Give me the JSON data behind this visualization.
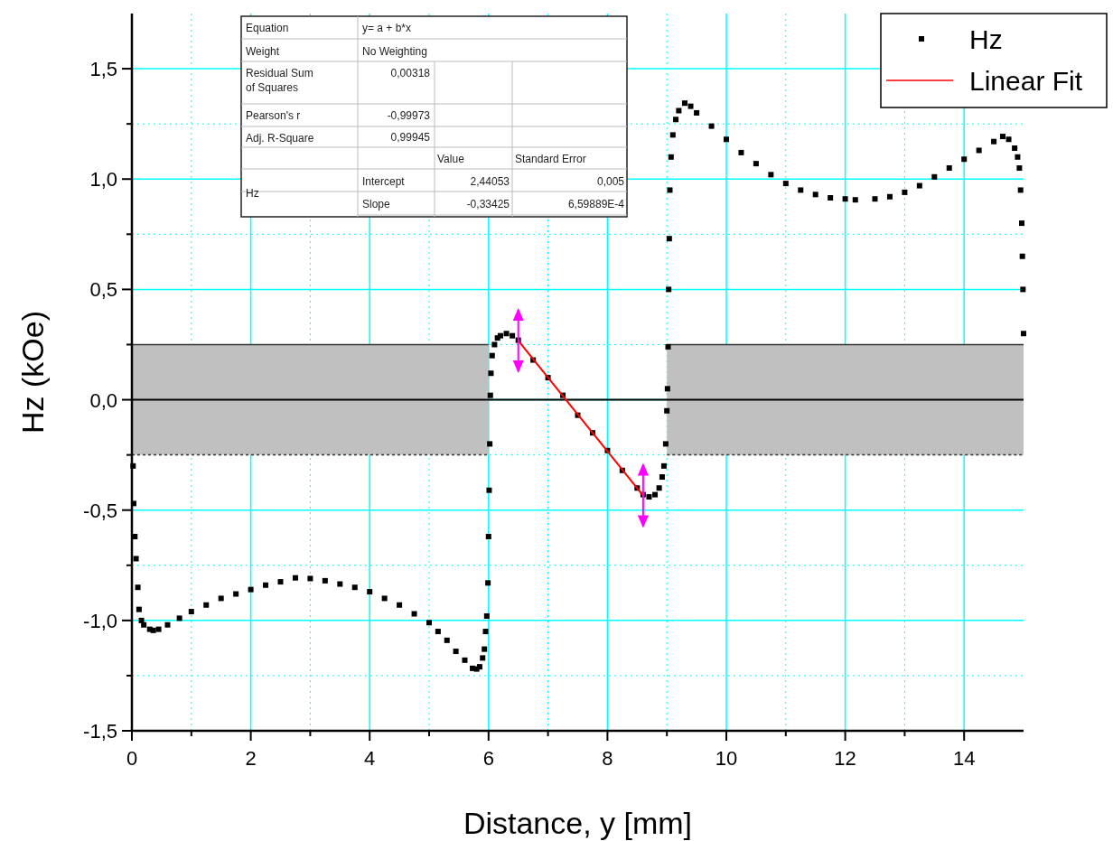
{
  "chart_data": {
    "type": "scatter",
    "xlabel": "Distance, y [mm]",
    "ylabel": "Hz (kOe)",
    "xlim": [
      0,
      15
    ],
    "ylim": [
      -1.5,
      1.75
    ],
    "xticks": [
      0,
      {
        "value": 1,
        "label": null
      },
      2,
      {
        "value": 3,
        "label": null
      },
      4,
      {
        "value": 5,
        "label": null
      },
      6,
      {
        "value": 7,
        "label": null
      },
      8,
      {
        "value": 9,
        "label": null
      },
      10,
      {
        "value": 11,
        "label": null
      },
      12,
      {
        "value": 13,
        "label": null
      },
      14
    ],
    "yticks": [
      {
        "value": -1.5,
        "label": "-1,5"
      },
      {
        "value": -1.25,
        "label": null
      },
      {
        "value": -1,
        "label": "-1,0"
      },
      {
        "value": -0.75,
        "label": null
      },
      {
        "value": -0.5,
        "label": "-0,5"
      },
      {
        "value": -0.25,
        "label": null
      },
      {
        "value": 0,
        "label": "0,0"
      },
      {
        "value": 0.25,
        "label": null
      },
      {
        "value": 0.5,
        "label": "0,5"
      },
      {
        "value": 0.75,
        "label": null
      },
      {
        "value": 1,
        "label": "1,0"
      },
      {
        "value": 1.25,
        "label": null
      },
      {
        "value": 1.5,
        "label": "1,5"
      }
    ],
    "grid": true,
    "legend": "top right",
    "series": [
      {
        "type": "line",
        "color": "#000000",
        "x": [
          0,
          6,
          7.5,
          9,
          15
        ],
        "values": [
          0,
          0,
          0,
          0,
          0
        ],
        "lower": [
          -0.25,
          -0.25,
          null,
          -0.25,
          -0.25
        ],
        "upper": [
          0.25,
          0.25,
          null,
          0.25,
          0.25
        ]
      },
      {
        "name": "Hz",
        "color": "#000000",
        "marker": "square",
        "x": [
          0.02,
          0.03,
          0.05,
          0.07,
          0.1,
          0.12,
          0.16,
          0.2,
          0.3,
          0.36,
          0.45,
          0.6,
          0.8,
          1.0,
          1.25,
          1.5,
          1.75,
          2.0,
          2.25,
          2.5,
          2.75,
          3.0,
          3.25,
          3.5,
          3.75,
          4.0,
          4.25,
          4.5,
          4.75,
          5.0,
          5.15,
          5.3,
          5.45,
          5.6,
          5.73,
          5.8,
          5.85,
          5.9,
          5.93,
          5.95,
          5.97,
          5.99,
          6.0,
          6.01,
          6.02,
          6.03,
          6.04,
          6.06,
          6.1,
          6.15,
          6.2,
          6.3,
          6.4,
          6.5,
          6.75,
          7.0,
          7.25,
          7.5,
          7.75,
          8.0,
          8.25,
          8.5,
          8.6,
          8.7,
          8.8,
          8.87,
          8.92,
          8.95,
          8.98,
          9.0,
          9.01,
          9.02,
          9.03,
          9.04,
          9.05,
          9.07,
          9.1,
          9.15,
          9.2,
          9.3,
          9.4,
          9.5,
          9.75,
          10.0,
          10.25,
          10.5,
          10.75,
          11.0,
          11.25,
          11.5,
          11.75,
          12.0,
          12.17,
          12.5,
          12.75,
          13.0,
          13.25,
          13.5,
          13.75,
          14.0,
          14.25,
          14.5,
          14.65,
          14.75,
          14.85,
          14.9,
          14.93,
          14.95,
          14.97,
          14.98,
          14.99,
          15.0
        ],
        "values": [
          -0.3,
          -0.47,
          -0.62,
          -0.72,
          -0.85,
          -0.95,
          -1.0,
          -1.02,
          -1.04,
          -1.045,
          -1.04,
          -1.02,
          -0.99,
          -0.96,
          -0.93,
          -0.9,
          -0.88,
          -0.86,
          -0.84,
          -0.825,
          -0.807,
          -0.81,
          -0.82,
          -0.835,
          -0.85,
          -0.87,
          -0.9,
          -0.93,
          -0.97,
          -1.01,
          -1.05,
          -1.09,
          -1.14,
          -1.18,
          -1.217,
          -1.22,
          -1.21,
          -1.17,
          -1.13,
          -1.05,
          -0.98,
          -0.83,
          -0.62,
          -0.41,
          -0.2,
          0.02,
          0.12,
          0.2,
          0.25,
          0.28,
          0.29,
          0.3,
          0.29,
          0.27,
          0.18,
          0.1,
          0.02,
          -0.07,
          -0.15,
          -0.23,
          -0.32,
          -0.4,
          -0.43,
          -0.44,
          -0.43,
          -0.4,
          -0.35,
          -0.3,
          -0.2,
          -0.05,
          0.05,
          0.24,
          0.5,
          0.73,
          0.95,
          1.1,
          1.2,
          1.27,
          1.31,
          1.344,
          1.33,
          1.3,
          1.24,
          1.18,
          1.12,
          1.07,
          1.02,
          0.98,
          0.95,
          0.93,
          0.915,
          0.91,
          0.906,
          0.91,
          0.92,
          0.94,
          0.97,
          1.01,
          1.05,
          1.09,
          1.13,
          1.17,
          1.193,
          1.18,
          1.14,
          1.1,
          1.05,
          0.95,
          0.8,
          0.65,
          0.5,
          0.3
        ]
      },
      {
        "name": "Linear Fit",
        "type": "line",
        "color": "#ff0000",
        "line_style": "solid",
        "x": [
          6.5,
          8.6
        ],
        "values": [
          0.268,
          -0.434
        ]
      }
    ],
    "annotations": [
      "Equation",
      "y= a + b*x",
      "Weight",
      "No Weighting",
      "Residual Sum of Squares",
      "0,00318",
      "Pearson's r",
      "-0,99973",
      "Adj. R-Square",
      "0,99945",
      "Value",
      "Standard Error",
      "Hz",
      "Intercept",
      "2,44053",
      "0,005",
      "Slope",
      "-0,33425",
      "6,59889E-4"
    ]
  }
}
